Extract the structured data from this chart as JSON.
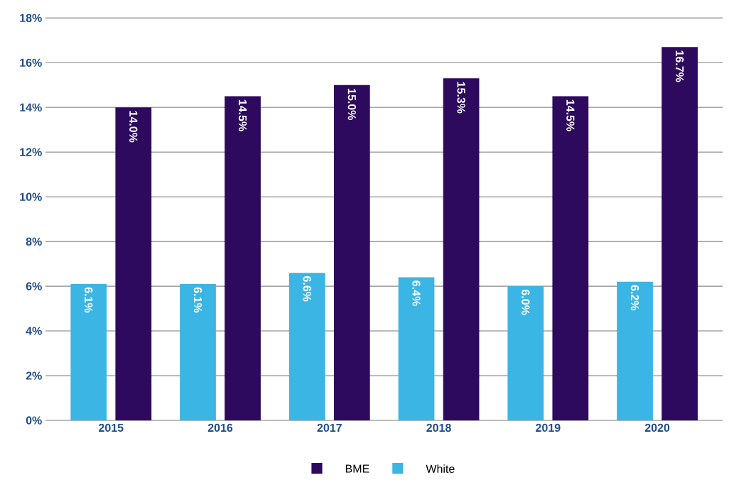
{
  "chart_data": {
    "type": "bar",
    "categories": [
      "2015",
      "2016",
      "2017",
      "2018",
      "2019",
      "2020"
    ],
    "series": [
      {
        "name": "White",
        "color": "#3bb5e3",
        "values": [
          6.1,
          6.1,
          6.6,
          6.4,
          6.0,
          6.2
        ],
        "value_labels": [
          "6.1%",
          "6.1%",
          "6.6%",
          "6.4%",
          "6.0%",
          "6.2%"
        ]
      },
      {
        "name": "BME",
        "color": "#2d0a5e",
        "values": [
          14.0,
          14.5,
          15.0,
          15.3,
          14.5,
          16.7
        ],
        "value_labels": [
          "14.0%",
          "14.5%",
          "15.0%",
          "15.3%",
          "14.5%",
          "16.7%"
        ]
      }
    ],
    "ylim": [
      0,
      18
    ],
    "yticks": [
      {
        "value": 0,
        "label": "0%"
      },
      {
        "value": 2,
        "label": "2%"
      },
      {
        "value": 4,
        "label": "4%"
      },
      {
        "value": 6,
        "label": "6%"
      },
      {
        "value": 8,
        "label": "8%"
      },
      {
        "value": 10,
        "label": "10%"
      },
      {
        "value": 12,
        "label": "12%"
      },
      {
        "value": 14,
        "label": "14%"
      },
      {
        "value": 16,
        "label": "16%"
      },
      {
        "value": 18,
        "label": "18%"
      }
    ],
    "grid": "y",
    "legend": "bottom"
  }
}
